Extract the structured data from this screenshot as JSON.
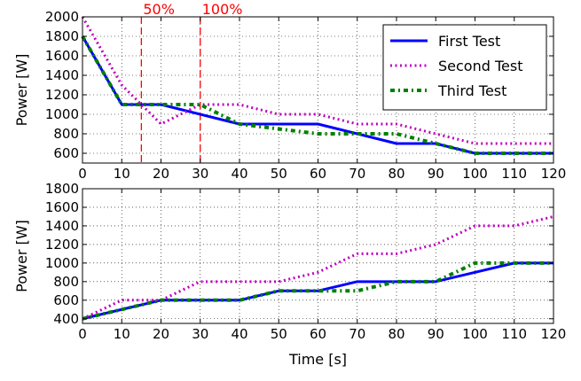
{
  "chart_data": [
    {
      "type": "line",
      "xlabel": "",
      "ylabel": "Power [W]",
      "xlim": [
        0,
        120
      ],
      "ylim": [
        500,
        2000
      ],
      "xticks": [
        0,
        10,
        20,
        30,
        40,
        50,
        60,
        70,
        80,
        90,
        100,
        110,
        120
      ],
      "yticks": [
        600,
        800,
        1000,
        1200,
        1400,
        1600,
        1800,
        2000
      ],
      "grid": true,
      "legend_position": "top-right",
      "series": [
        {
          "name": "First Test",
          "style": "solid",
          "color": "#0000ff",
          "x": [
            0,
            10,
            20,
            40,
            60,
            80,
            90,
            100,
            120
          ],
          "y": [
            1800,
            1100,
            1100,
            900,
            900,
            700,
            700,
            600,
            600
          ]
        },
        {
          "name": "Second Test",
          "style": "dotted",
          "color": "#bf00bf",
          "x": [
            0,
            10,
            20,
            30,
            40,
            50,
            60,
            70,
            80,
            90,
            100,
            120
          ],
          "y": [
            2000,
            1300,
            900,
            1100,
            1100,
            1000,
            1000,
            900,
            900,
            800,
            700,
            700
          ]
        },
        {
          "name": "Third Test",
          "style": "dashdot",
          "color": "#008000",
          "x": [
            0,
            10,
            20,
            30,
            40,
            60,
            80,
            90,
            100,
            120
          ],
          "y": [
            1800,
            1100,
            1100,
            1100,
            900,
            800,
            800,
            700,
            600,
            600
          ]
        }
      ],
      "annotations": [
        {
          "label": "50%",
          "x": 15,
          "color": "#ff0000"
        },
        {
          "label": "100%",
          "x": 30,
          "color": "#ff0000"
        }
      ]
    },
    {
      "type": "line",
      "xlabel": "Time [s]",
      "ylabel": "Power [W]",
      "xlim": [
        0,
        120
      ],
      "ylim": [
        350,
        1800
      ],
      "xticks": [
        0,
        10,
        20,
        30,
        40,
        50,
        60,
        70,
        80,
        90,
        100,
        110,
        120
      ],
      "yticks": [
        400,
        600,
        800,
        1000,
        1200,
        1400,
        1600,
        1800
      ],
      "grid": true,
      "series": [
        {
          "style": "solid",
          "color": "#0000ff",
          "x": [
            0,
            20,
            40,
            50,
            60,
            70,
            90,
            110,
            120
          ],
          "y": [
            400,
            600,
            600,
            700,
            700,
            800,
            800,
            1000,
            1000
          ]
        },
        {
          "style": "dotted",
          "color": "#bf00bf",
          "x": [
            0,
            10,
            20,
            30,
            50,
            60,
            70,
            80,
            90,
            100,
            110,
            120
          ],
          "y": [
            400,
            600,
            600,
            800,
            800,
            900,
            1100,
            1100,
            1200,
            1400,
            1400,
            1500
          ]
        },
        {
          "style": "dashdot",
          "color": "#008000",
          "x": [
            0,
            20,
            40,
            50,
            60,
            70,
            80,
            90,
            100,
            120
          ],
          "y": [
            400,
            600,
            600,
            700,
            700,
            700,
            800,
            800,
            1000,
            1000
          ]
        }
      ]
    }
  ]
}
